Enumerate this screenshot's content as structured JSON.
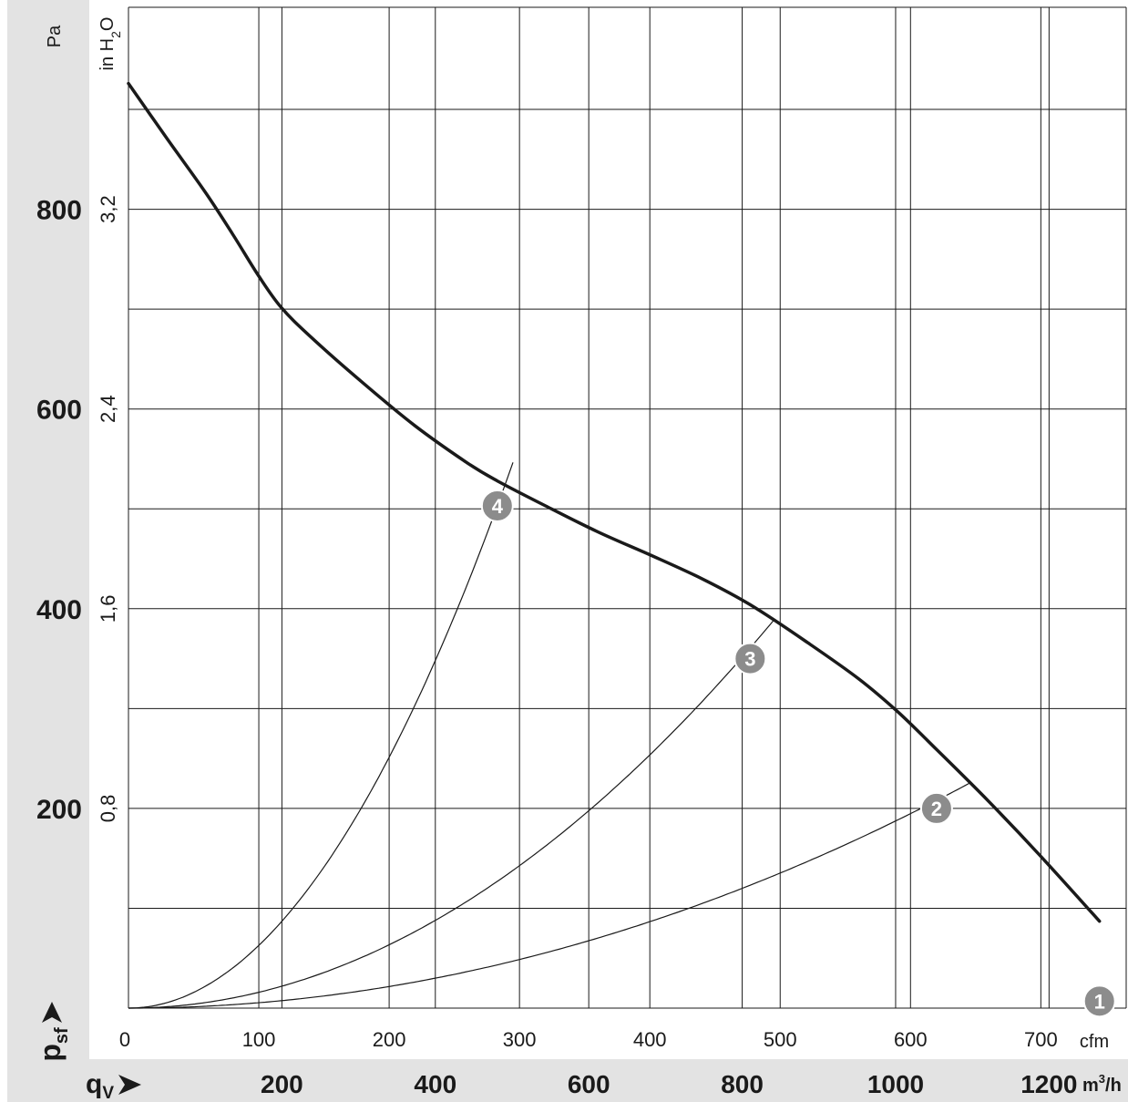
{
  "chart_data": {
    "type": "line",
    "y_axis_primary": {
      "unit": "Pa",
      "ticks": [
        200,
        400,
        600,
        800
      ],
      "range": [
        0,
        920
      ]
    },
    "y_axis_secondary": {
      "unit_prefix": "in H",
      "unit_sub": "2",
      "unit_suffix": "O",
      "ticks": [
        "0,8",
        "1,6",
        "2,4",
        "3,2"
      ]
    },
    "y_symbol": {
      "letter": "p",
      "sub": "sf"
    },
    "x_axis_primary": {
      "unit": "cfm",
      "ticks": [
        0,
        100,
        200,
        300,
        400,
        500,
        600,
        700
      ],
      "range": [
        0,
        745
      ]
    },
    "x_axis_secondary": {
      "unit": "m³/h",
      "unit_base": "m",
      "unit_sup": "3",
      "unit_tail": "/h",
      "ticks": [
        200,
        400,
        600,
        800,
        1000,
        1200
      ]
    },
    "x_symbol": {
      "letter": "q",
      "sub": "V"
    },
    "series": [
      {
        "role": "fan-curve",
        "cfm": [
          0,
          30,
          59,
          80,
          100,
          117,
          140,
          180,
          220,
          260,
          283,
          320,
          360,
          400,
          440,
          477,
          520,
          560,
          590,
          620,
          660,
          700,
          745
        ],
        "pa": [
          926,
          870,
          817,
          775,
          733,
          702,
          672,
          626,
          583,
          546,
          528,
          503,
          477,
          454,
          430,
          404,
          367,
          330,
          297,
          259,
          207,
          152,
          87
        ]
      },
      {
        "role": "system-curve",
        "k": 0.00628
      },
      {
        "role": "system-curve",
        "k": 0.001585
      },
      {
        "role": "system-curve",
        "k": 0.000541
      }
    ],
    "operating_points": [
      {
        "label": "1",
        "cfm": 745,
        "pa": 7
      },
      {
        "label": "2",
        "cfm": 620,
        "pa": 200
      },
      {
        "label": "3",
        "cfm": 477,
        "pa": 350
      },
      {
        "label": "4",
        "cfm": 283,
        "pa": 503
      }
    ],
    "colors": {
      "curve": "#1a1a1a",
      "grid": "#1a1a1a",
      "panel": "#e3e3e3",
      "marker": "#8c8c8c",
      "marker_text": "#ffffff"
    }
  }
}
